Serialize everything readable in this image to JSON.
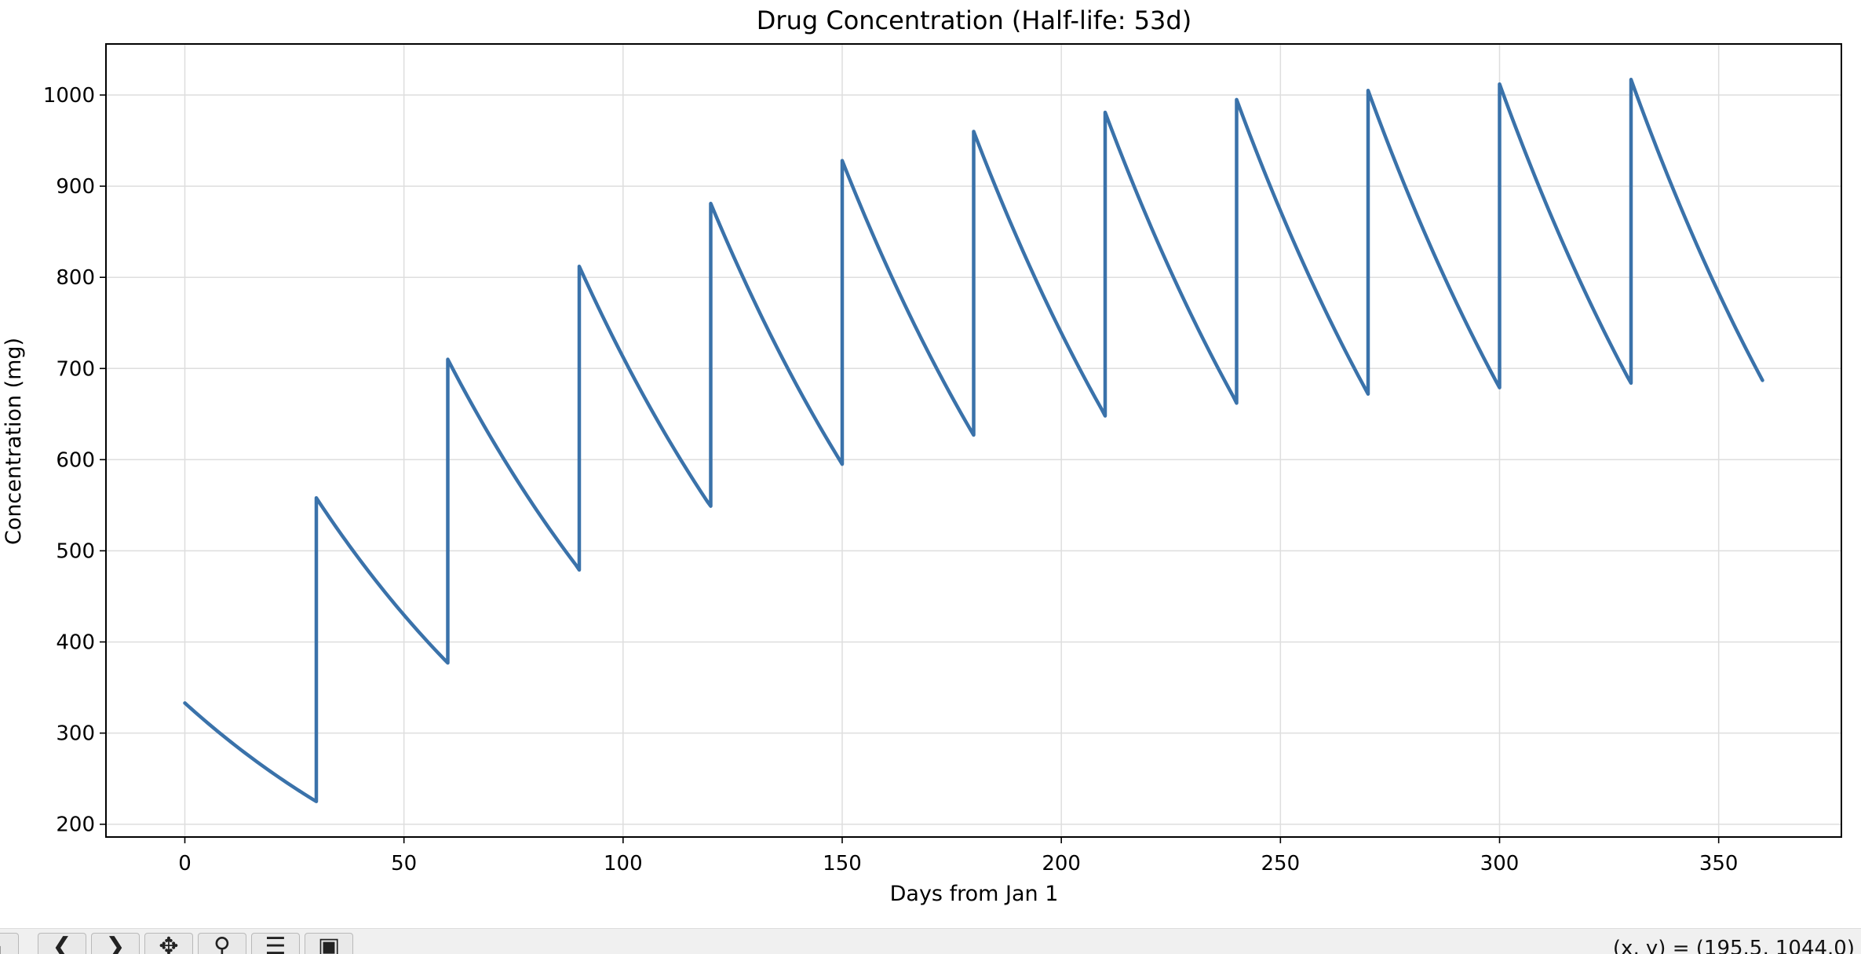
{
  "chart_data": {
    "type": "line",
    "title": "Drug Concentration (Half-life: 53d)",
    "xlabel": "Days from Jan 1",
    "ylabel": "Concentration (mg)",
    "xlim": [
      -18,
      378
    ],
    "ylim": [
      186,
      1056
    ],
    "xticks": [
      0,
      50,
      100,
      150,
      200,
      250,
      300,
      350
    ],
    "yticks": [
      200,
      300,
      400,
      500,
      600,
      700,
      800,
      900,
      1000
    ],
    "grid": true,
    "line_color": "#3a72aa",
    "half_life_days": 53,
    "dose_interval_days": 30,
    "x_end": 360,
    "peaks": [
      {
        "x": 0,
        "y": 333
      },
      {
        "x": 30,
        "y": 558
      },
      {
        "x": 60,
        "y": 710
      },
      {
        "x": 90,
        "y": 812
      },
      {
        "x": 120,
        "y": 881
      },
      {
        "x": 150,
        "y": 928
      },
      {
        "x": 180,
        "y": 960
      },
      {
        "x": 210,
        "y": 981
      },
      {
        "x": 240,
        "y": 995
      },
      {
        "x": 270,
        "y": 1005
      },
      {
        "x": 300,
        "y": 1012
      },
      {
        "x": 330,
        "y": 1017
      }
    ],
    "troughs": [
      {
        "x": 30,
        "y": 225
      },
      {
        "x": 60,
        "y": 377
      },
      {
        "x": 90,
        "y": 479
      },
      {
        "x": 120,
        "y": 549
      },
      {
        "x": 150,
        "y": 595
      },
      {
        "x": 180,
        "y": 627
      },
      {
        "x": 210,
        "y": 648
      },
      {
        "x": 240,
        "y": 662
      },
      {
        "x": 270,
        "y": 672
      },
      {
        "x": 300,
        "y": 679
      },
      {
        "x": 330,
        "y": 684
      },
      {
        "x": 360,
        "y": 687
      }
    ]
  },
  "toolbar": {
    "buttons": [
      {
        "name": "home-button",
        "icon": "home-icon",
        "glyph": "⌂"
      },
      {
        "name": "back-button",
        "icon": "back-arrow-icon",
        "glyph": "❮"
      },
      {
        "name": "forward-button",
        "icon": "forward-arrow-icon",
        "glyph": "❯"
      },
      {
        "name": "pan-button",
        "icon": "pan-icon",
        "glyph": "✥"
      },
      {
        "name": "zoom-button",
        "icon": "zoom-icon",
        "glyph": "⚲"
      },
      {
        "name": "configure-button",
        "icon": "sliders-icon",
        "glyph": "☰"
      },
      {
        "name": "save-button",
        "icon": "save-icon",
        "glyph": "▣"
      }
    ],
    "coords": "(x, y) = (195.5, 1044.0)"
  }
}
